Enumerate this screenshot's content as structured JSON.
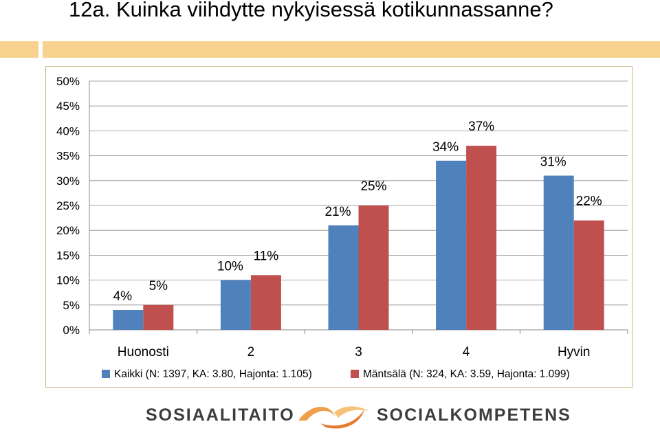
{
  "title": "12a. Kuinka viihdytte nykyisessä kotikunnassanne?",
  "chart_data": {
    "type": "bar",
    "categories": [
      "Huonosti",
      "2",
      "3",
      "4",
      "Hyvin"
    ],
    "series": [
      {
        "name": "Kaikki (N: 1397, KA: 3.80, Hajonta: 1.105)",
        "color": "#4f81bd",
        "values": [
          4,
          10,
          21,
          34,
          31
        ],
        "labels": [
          "4%",
          "10%",
          "21%",
          "34%",
          "31%"
        ]
      },
      {
        "name": "Mäntsälä (N: 324, KA: 3.59, Hajonta: 1.099)",
        "color": "#c0504d",
        "values": [
          5,
          11,
          25,
          37,
          22
        ],
        "labels": [
          "5%",
          "11%",
          "25%",
          "37%",
          "22%"
        ]
      }
    ],
    "ylim": [
      0,
      50
    ],
    "yticks": [
      "0%",
      "5%",
      "10%",
      "15%",
      "20%",
      "25%",
      "30%",
      "35%",
      "40%",
      "45%",
      "50%"
    ],
    "grid": true,
    "legend": "bottom"
  },
  "footer": {
    "left_text": "SOSIAALITAITO",
    "right_text": "SOCIALKOMPETENS"
  }
}
